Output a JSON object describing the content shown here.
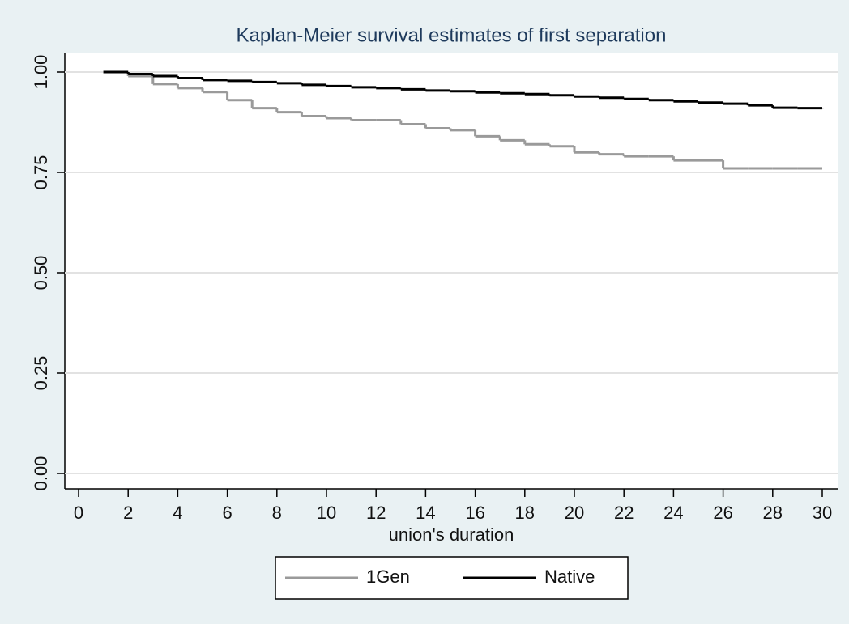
{
  "chart_data": {
    "type": "step",
    "title": "Kaplan-Meier survival estimates of first separation",
    "xlabel": "union's duration",
    "x": [
      1,
      2,
      3,
      4,
      5,
      6,
      7,
      8,
      9,
      10,
      11,
      12,
      13,
      14,
      15,
      16,
      17,
      18,
      19,
      20,
      21,
      22,
      23,
      24,
      25,
      26,
      27,
      28,
      29,
      30
    ],
    "series": [
      {
        "name": "1Gen",
        "color": "#9a9a9a",
        "values": [
          1.0,
          0.99,
          0.97,
          0.96,
          0.95,
          0.93,
          0.91,
          0.9,
          0.89,
          0.885,
          0.88,
          0.88,
          0.87,
          0.86,
          0.855,
          0.84,
          0.83,
          0.82,
          0.815,
          0.8,
          0.795,
          0.79,
          0.79,
          0.78,
          0.78,
          0.76,
          0.76,
          0.76,
          0.76,
          0.76
        ]
      },
      {
        "name": "Native",
        "color": "#000000",
        "values": [
          1.0,
          0.995,
          0.99,
          0.985,
          0.98,
          0.978,
          0.975,
          0.972,
          0.968,
          0.965,
          0.962,
          0.96,
          0.957,
          0.954,
          0.952,
          0.949,
          0.947,
          0.945,
          0.942,
          0.939,
          0.936,
          0.933,
          0.93,
          0.927,
          0.924,
          0.921,
          0.917,
          0.911,
          0.91,
          0.909
        ]
      }
    ],
    "xlim": [
      0,
      30
    ],
    "xticks": [
      0,
      2,
      4,
      6,
      8,
      10,
      12,
      14,
      16,
      18,
      20,
      22,
      24,
      26,
      28,
      30
    ],
    "ylim": [
      0,
      1
    ],
    "yticks": [
      {
        "value": 0,
        "label": "0.00"
      },
      {
        "value": 0.25,
        "label": "0.25"
      },
      {
        "value": 0.5,
        "label": "0.50"
      },
      {
        "value": 0.75,
        "label": "0.75"
      },
      {
        "value": 1,
        "label": "1.00"
      }
    ],
    "grid": true,
    "legend": "bottom"
  }
}
